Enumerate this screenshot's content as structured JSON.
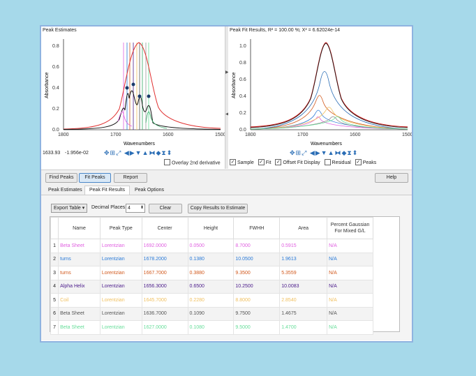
{
  "left_pane": {
    "title": "Peak Estimates",
    "ylabel": "Absorbance",
    "xlabel": "Wavenumbers",
    "x_ticks": [
      "1800",
      "1700",
      "1600",
      "1500"
    ],
    "y_ticks": [
      "0.0",
      "0.2",
      "0.4",
      "0.6",
      "0.8"
    ],
    "readout_x": "1633.93",
    "readout_y": "-1.956e-02",
    "overlay_label": "Overlay 2nd derivative"
  },
  "right_pane": {
    "title": "Peak Fit Results, R² = 100.00 %; X² = 6.62024e-14",
    "ylabel": "Absorbance",
    "xlabel": "Wavenumbers",
    "x_ticks": [
      "1800",
      "1700",
      "1600",
      "1500"
    ],
    "y_ticks": [
      "0.0",
      "0.2",
      "0.4",
      "0.6",
      "0.8",
      "1.0"
    ],
    "checkboxes": [
      {
        "label": "Sample",
        "checked": true
      },
      {
        "label": "Fit",
        "checked": true
      },
      {
        "label": "Offset Fit Display",
        "checked": true
      },
      {
        "label": "Residual",
        "checked": false
      },
      {
        "label": "Peaks",
        "checked": true
      }
    ]
  },
  "buttons": {
    "find_peaks": "Find Peaks",
    "fit_peaks": "Fit Peaks",
    "report": "Report",
    "help": "Help"
  },
  "tabs": [
    "Peak Estimates",
    "Peak Fit Results",
    "Peak Options"
  ],
  "active_tab": "Peak Fit Results",
  "controls": {
    "export_table": "Export Table",
    "decimal_places_label": "Decimal Places:",
    "decimal_places_value": "4",
    "clear": "Clear",
    "copy_results": "Copy Results to Estimate"
  },
  "table": {
    "headers": [
      "Name",
      "Peak Type",
      "Center",
      "Height",
      "FWHH",
      "Area",
      "Percent Gaussian For Mixed G/L"
    ],
    "rows": [
      {
        "idx": "1",
        "name": "Beta Sheet",
        "type": "Lorentzian",
        "center": "1692.0000",
        "height": "0.0500",
        "fwhh": "8.7000",
        "area": "0.5915",
        "pct": "N/A",
        "color": "#e060e0"
      },
      {
        "idx": "2",
        "name": "turns",
        "type": "Lorentzian",
        "center": "1678.2000",
        "height": "0.1380",
        "fwhh": "10.0500",
        "area": "1.9613",
        "pct": "N/A",
        "color": "#2a7ad8"
      },
      {
        "idx": "3",
        "name": "turns",
        "type": "Lorentzian",
        "center": "1667.7000",
        "height": "0.3880",
        "fwhh": "9.3500",
        "area": "5.3559",
        "pct": "N/A",
        "color": "#d25a1e"
      },
      {
        "idx": "4",
        "name": "Alpha Helix",
        "type": "Lorentzian",
        "center": "1656.3000",
        "height": "0.6500",
        "fwhh": "10.2500",
        "area": "10.0083",
        "pct": "N/A",
        "color": "#4a1a8a"
      },
      {
        "idx": "5",
        "name": "Coil",
        "type": "Lorentzian",
        "center": "1645.7000",
        "height": "0.2280",
        "fwhh": "8.8000",
        "area": "2.8540",
        "pct": "N/A",
        "color": "#f0c060"
      },
      {
        "idx": "6",
        "name": "Beta Sheet",
        "type": "Lorentzian",
        "center": "1636.7000",
        "height": "0.1090",
        "fwhh": "9.7500",
        "area": "1.4675",
        "pct": "N/A",
        "color": "#555555"
      },
      {
        "idx": "7",
        "name": "Beta Sheet",
        "type": "Lorentzian",
        "center": "1627.0000",
        "height": "0.1080",
        "fwhh": "9.5000",
        "area": "1.4700",
        "pct": "N/A",
        "color": "#66dd99"
      }
    ]
  },
  "colors": {
    "accent": "#2a6db5",
    "window_border": "#8fb3e0",
    "background": "#a6d9ea"
  }
}
